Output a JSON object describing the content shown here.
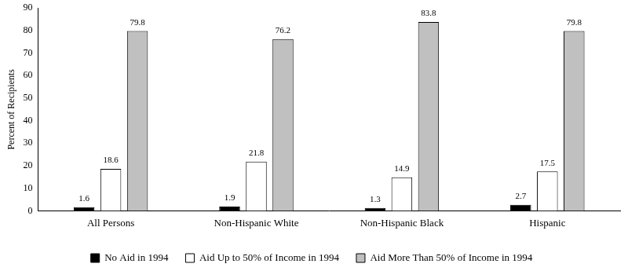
{
  "chart_data": {
    "type": "bar",
    "y_label": "Percent of Recipients",
    "categories": [
      "All Persons",
      "Non-Hispanic White",
      "Non-Hispanic Black",
      "Hispanic"
    ],
    "series": [
      {
        "name": "No Aid in 1994",
        "color": "#000000",
        "values": [
          1.6,
          1.9,
          1.3,
          2.7
        ]
      },
      {
        "name": "Aid Up to 50% of Income in 1994",
        "color": "#ffffff",
        "values": [
          18.6,
          21.8,
          14.9,
          17.5
        ]
      },
      {
        "name": "Aid More Than 50% of Income in 1994",
        "color": "#c0c0c0",
        "values": [
          79.8,
          76.2,
          83.8,
          79.8
        ]
      }
    ],
    "ylim": [
      0,
      90
    ],
    "yticks": [
      0,
      10,
      20,
      30,
      40,
      50,
      60,
      70,
      80,
      90
    ],
    "grid": false,
    "legend": "bottom",
    "data_labels": true
  }
}
